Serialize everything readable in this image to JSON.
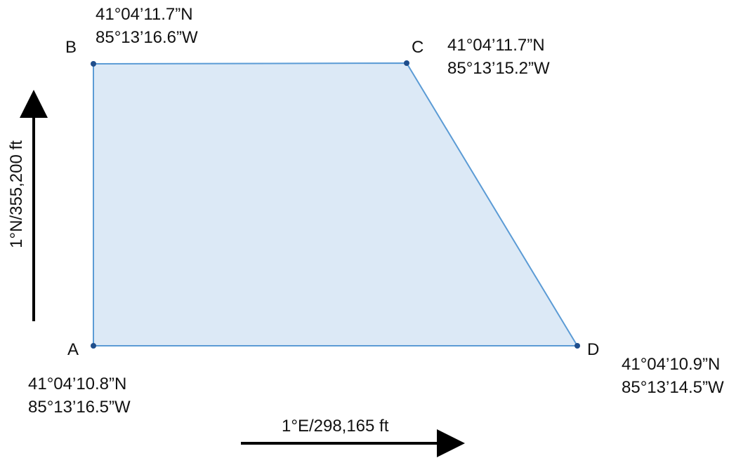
{
  "colors": {
    "polygon_fill": "#dce9f6",
    "polygon_stroke": "#5b9bd5",
    "vertex": "#1f4e8c",
    "arrow": "#000000"
  },
  "vertices": {
    "A": {
      "label": "A",
      "lat": "41°04’10.8”N",
      "lon": "85°13’16.5”W"
    },
    "B": {
      "label": "B",
      "lat": "41°04’11.7”N",
      "lon": "85°13’16.6”W"
    },
    "C": {
      "label": "C",
      "lat": "41°04’11.7”N",
      "lon": "85°13’15.2”W"
    },
    "D": {
      "label": "D",
      "lat": "41°04’10.9”N",
      "lon": "85°13’14.5”W"
    }
  },
  "axes": {
    "north_label": "1°N/355,200 ft",
    "east_label": "1°E/298,165 ft"
  }
}
